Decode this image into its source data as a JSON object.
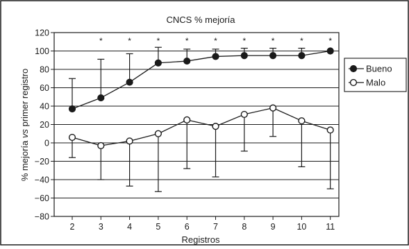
{
  "chart_data": {
    "type": "line",
    "title": "CNCS % mejoría",
    "xlabel": "Registros",
    "ylabel_parts": [
      "% mejoría ",
      "vs",
      " primer registro"
    ],
    "categories": [
      "2",
      "3",
      "4",
      "5",
      "6",
      "7",
      "8",
      "9",
      "10",
      "11"
    ],
    "ylim": [
      -80,
      120
    ],
    "yticks": [
      -80,
      -60,
      -40,
      -20,
      0,
      20,
      40,
      60,
      80,
      100,
      120
    ],
    "grid": true,
    "legend_position": "right",
    "significance_marker": "*",
    "significant": [
      false,
      true,
      true,
      true,
      true,
      true,
      true,
      true,
      true,
      true
    ],
    "series": [
      {
        "name": "Bueno",
        "marker": "filled-circle",
        "errorbar_direction": "up",
        "values": [
          37,
          49,
          66,
          87,
          89,
          94,
          95,
          95,
          95,
          100
        ],
        "error": [
          33,
          42,
          31,
          17,
          13,
          8,
          8,
          8,
          8,
          0
        ]
      },
      {
        "name": "Malo",
        "marker": "open-circle",
        "errorbar_direction": "mixed",
        "values": [
          6,
          -3,
          2,
          10,
          25,
          18,
          31,
          38,
          24,
          14
        ],
        "error_low": [
          -16,
          -40,
          -47,
          -53,
          -28,
          -37,
          -9,
          7,
          -26,
          -50
        ],
        "error_high": [
          6,
          -3,
          2,
          10,
          25,
          18,
          31,
          38,
          24,
          14
        ]
      }
    ]
  }
}
